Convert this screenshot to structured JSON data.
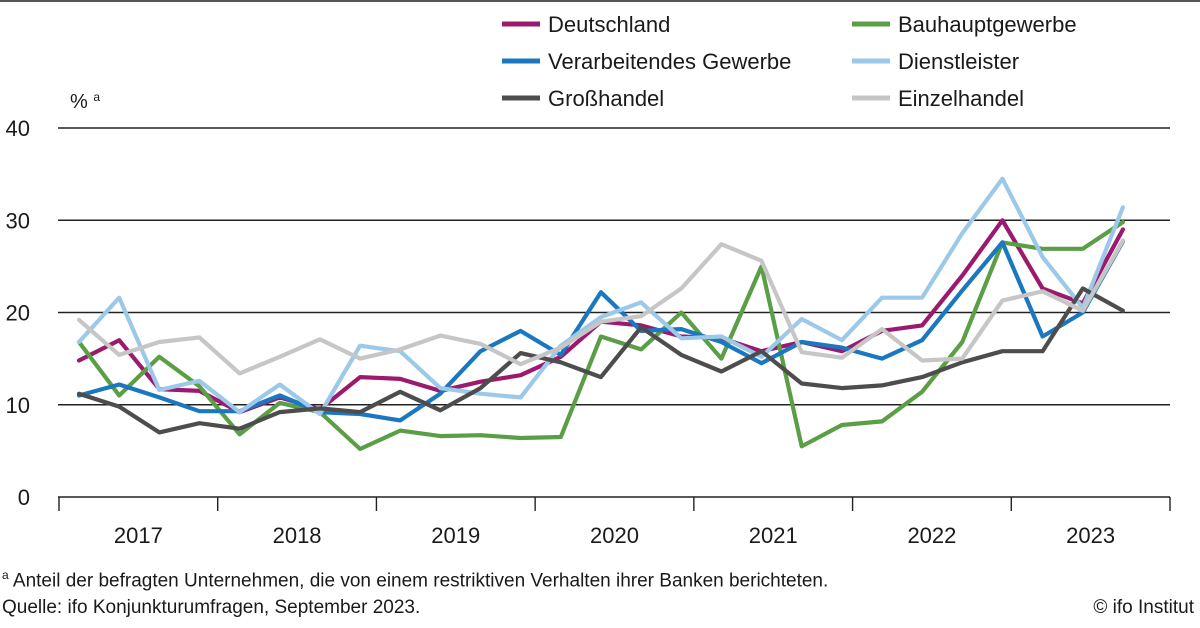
{
  "chart_data": {
    "type": "line",
    "ylabel": "%",
    "ylabel_marker": "a",
    "ylim": [
      0,
      40
    ],
    "yticks": [
      0,
      10,
      20,
      30,
      40
    ],
    "grid": "horizontal",
    "legend_position": "top",
    "years": [
      "2017",
      "2018",
      "2019",
      "2020",
      "2021",
      "2022",
      "2023"
    ],
    "x": [
      0,
      1,
      2,
      3,
      4,
      5,
      6,
      7,
      8,
      9,
      10,
      11,
      12,
      13,
      14,
      15,
      16,
      17,
      18,
      19,
      20,
      21,
      22,
      23,
      24,
      25,
      26
    ],
    "series": [
      {
        "name": "Deutschland",
        "color": "#9b1a6e",
        "values": [
          14.8,
          17.0,
          11.7,
          11.5,
          9.2,
          10.8,
          9.5,
          13.0,
          12.8,
          11.5,
          12.5,
          13.2,
          15.2,
          19.0,
          18.6,
          17.4,
          17.2,
          15.8,
          16.8,
          15.8,
          18.0,
          18.6,
          24.0,
          30.0,
          22.6,
          21.0,
          29.0
        ]
      },
      {
        "name": "Bauhauptgewerbe",
        "color": "#5a9e46",
        "values": [
          16.8,
          11.0,
          15.2,
          12.0,
          6.8,
          10.2,
          9.2,
          5.2,
          7.2,
          6.6,
          6.7,
          6.4,
          6.5,
          17.4,
          16.0,
          20.0,
          15.0,
          25.0,
          5.5,
          7.8,
          8.2,
          11.4,
          16.8,
          27.6,
          26.9,
          26.9,
          29.8
        ]
      },
      {
        "name": "Verarbeitendes Gewerbe",
        "color": "#1a77c0",
        "values": [
          11.0,
          12.2,
          10.8,
          9.3,
          9.3,
          11.0,
          9.2,
          9.0,
          8.3,
          11.2,
          15.8,
          18.0,
          15.4,
          22.2,
          18.0,
          18.2,
          16.8,
          14.5,
          16.8,
          16.2,
          15.0,
          17.0,
          22.4,
          27.6,
          17.4,
          20.0,
          27.7
        ]
      },
      {
        "name": "Dienstleister",
        "color": "#9cc9ea",
        "values": [
          16.8,
          21.6,
          11.6,
          12.6,
          9.2,
          12.2,
          9.0,
          16.4,
          15.8,
          11.8,
          11.2,
          10.8,
          16.4,
          19.5,
          21.1,
          17.2,
          17.4,
          15.2,
          19.3,
          17.0,
          21.6,
          21.6,
          28.6,
          34.5,
          26.0,
          20.5,
          31.4
        ]
      },
      {
        "name": "Großhandel",
        "color": "#4d4d4d",
        "values": [
          11.2,
          9.8,
          7.0,
          8.0,
          7.4,
          9.2,
          9.6,
          9.2,
          11.4,
          9.4,
          11.8,
          15.6,
          14.6,
          13.0,
          18.4,
          15.4,
          13.6,
          15.8,
          12.3,
          11.8,
          12.1,
          13.0,
          14.6,
          15.8,
          15.8,
          22.6,
          20.2
        ]
      },
      {
        "name": "Einzelhandel",
        "color": "#c6c6c6",
        "values": [
          19.2,
          15.4,
          16.8,
          17.3,
          13.4,
          15.2,
          17.1,
          15.0,
          16.0,
          17.5,
          16.6,
          14.4,
          16.2,
          19.0,
          19.6,
          22.6,
          27.4,
          25.6,
          15.7,
          15.1,
          18.2,
          14.8,
          15.0,
          21.3,
          22.3,
          20.2,
          27.8
        ]
      }
    ]
  },
  "footnote": {
    "marker": "a",
    "text": " Anteil der befragten Unternehmen, die von einem restriktiven Verhalten ihrer Banken berichteten."
  },
  "source": "Quelle: ifo Konjunkturumfragen, September 2023.",
  "copyright": "© ifo Institut"
}
